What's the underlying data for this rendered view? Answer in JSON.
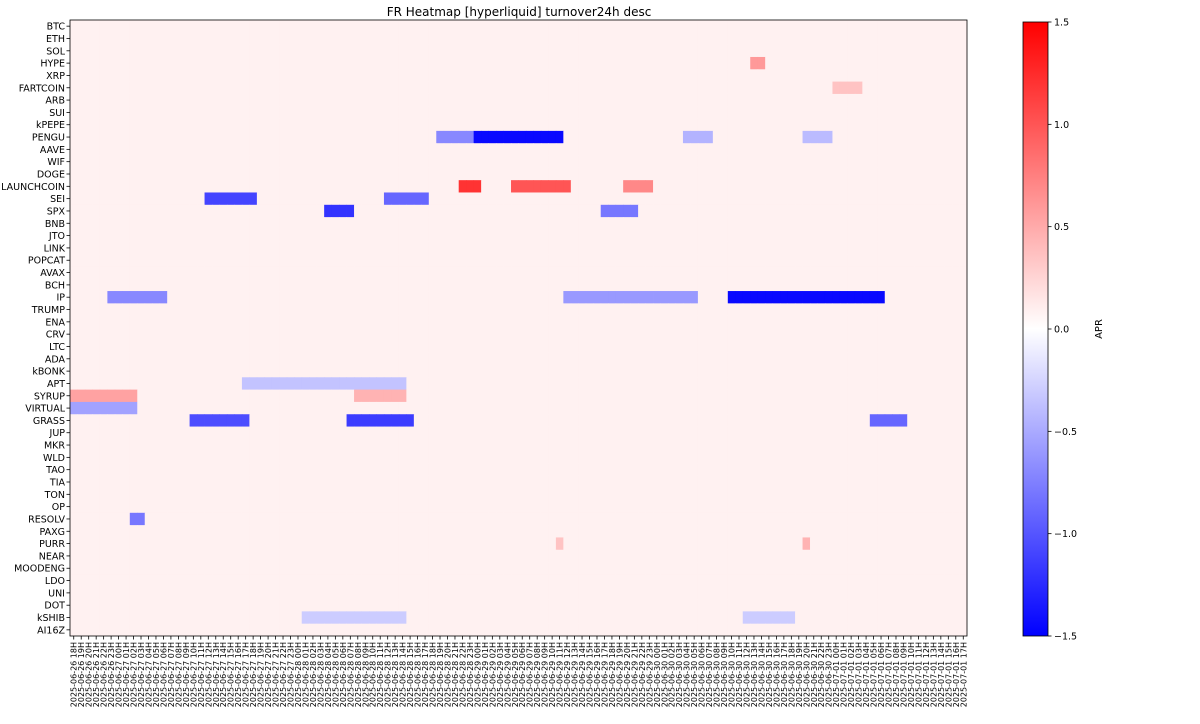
{
  "chart_data": {
    "type": "heatmap",
    "title": "FR Heatmap [hyperliquid] turnover24h desc",
    "colorbar": {
      "label": "APR",
      "min": -1.5,
      "max": 1.5,
      "ticks": [
        "1.5",
        "1.0",
        "0.5",
        "0.0",
        "−0.5",
        "−1.0",
        "−1.5"
      ],
      "colormap": "bwr",
      "colors": {
        "low": "#0000ff",
        "mid": "#ffffff",
        "high": "#ff0000"
      }
    },
    "y_labels": [
      "BTC",
      "ETH",
      "SOL",
      "HYPE",
      "XRP",
      "FARTCOIN",
      "ARB",
      "SUI",
      "kPEPE",
      "PENGU",
      "AAVE",
      "WIF",
      "DOGE",
      "LAUNCHCOIN",
      "SEI",
      "SPX",
      "BNB",
      "JTO",
      "LINK",
      "POPCAT",
      "AVAX",
      "BCH",
      "IP",
      "TRUMP",
      "ENA",
      "CRV",
      "LTC",
      "ADA",
      "kBONK",
      "APT",
      "SYRUP",
      "VIRTUAL",
      "GRASS",
      "JUP",
      "MKR",
      "WLD",
      "TAO",
      "TIA",
      "TON",
      "OP",
      "RESOLV",
      "PAXG",
      "PURR",
      "NEAR",
      "MOODENG",
      "LDO",
      "UNI",
      "DOT",
      "kSHIB",
      "AI16Z"
    ],
    "x_labels": [
      "2025-06-26 18H",
      "2025-06-26 19H",
      "2025-06-26 20H",
      "2025-06-26 21H",
      "2025-06-26 22H",
      "2025-06-26 23H",
      "2025-06-27 00H",
      "2025-06-27 01H",
      "2025-06-27 02H",
      "2025-06-27 03H",
      "2025-06-27 04H",
      "2025-06-27 05H",
      "2025-06-27 06H",
      "2025-06-27 07H",
      "2025-06-27 08H",
      "2025-06-27 09H",
      "2025-06-27 10H",
      "2025-06-27 11H",
      "2025-06-27 12H",
      "2025-06-27 13H",
      "2025-06-27 14H",
      "2025-06-27 15H",
      "2025-06-27 16H",
      "2025-06-27 17H",
      "2025-06-27 18H",
      "2025-06-27 19H",
      "2025-06-27 20H",
      "2025-06-27 21H",
      "2025-06-27 22H",
      "2025-06-27 23H",
      "2025-06-28 00H",
      "2025-06-28 01H",
      "2025-06-28 02H",
      "2025-06-28 03H",
      "2025-06-28 04H",
      "2025-06-28 05H",
      "2025-06-28 06H",
      "2025-06-28 07H",
      "2025-06-28 08H",
      "2025-06-28 09H",
      "2025-06-28 10H",
      "2025-06-28 11H",
      "2025-06-28 12H",
      "2025-06-28 13H",
      "2025-06-28 14H",
      "2025-06-28 15H",
      "2025-06-28 16H",
      "2025-06-28 17H",
      "2025-06-28 18H",
      "2025-06-28 19H",
      "2025-06-28 20H",
      "2025-06-28 21H",
      "2025-06-28 22H",
      "2025-06-28 23H",
      "2025-06-29 00H",
      "2025-06-29 01H",
      "2025-06-29 02H",
      "2025-06-29 03H",
      "2025-06-29 04H",
      "2025-06-29 05H",
      "2025-06-29 06H",
      "2025-06-29 07H",
      "2025-06-29 08H",
      "2025-06-29 09H",
      "2025-06-29 10H",
      "2025-06-29 11H",
      "2025-06-29 12H",
      "2025-06-29 13H",
      "2025-06-29 14H",
      "2025-06-29 15H",
      "2025-06-29 16H",
      "2025-06-29 17H",
      "2025-06-29 18H",
      "2025-06-29 19H",
      "2025-06-29 20H",
      "2025-06-29 21H",
      "2025-06-29 22H",
      "2025-06-29 23H",
      "2025-06-30 00H",
      "2025-06-30 01H",
      "2025-06-30 02H",
      "2025-06-30 03H",
      "2025-06-30 04H",
      "2025-06-30 05H",
      "2025-06-30 06H",
      "2025-06-30 07H",
      "2025-06-30 08H",
      "2025-06-30 09H",
      "2025-06-30 10H",
      "2025-06-30 11H",
      "2025-06-30 12H",
      "2025-06-30 13H",
      "2025-06-30 14H",
      "2025-06-30 15H",
      "2025-06-30 16H",
      "2025-06-30 17H",
      "2025-06-30 18H",
      "2025-06-30 19H",
      "2025-06-30 20H",
      "2025-06-30 21H",
      "2025-06-30 22H",
      "2025-06-30 23H",
      "2025-07-01 00H",
      "2025-07-01 01H",
      "2025-07-01 02H",
      "2025-07-01 03H",
      "2025-07-01 04H",
      "2025-07-01 05H",
      "2025-07-01 06H",
      "2025-07-01 07H",
      "2025-07-01 08H",
      "2025-07-01 09H",
      "2025-07-01 10H",
      "2025-07-01 11H",
      "2025-07-01 12H",
      "2025-07-01 13H",
      "2025-07-01 14H",
      "2025-07-01 15H",
      "2025-07-01 16H",
      "2025-07-01 17H"
    ],
    "x_tick_every": 1,
    "baseline_value": 0.08,
    "features": [
      {
        "row": "PENGU",
        "from": "2025-06-29 00H",
        "to": "2025-06-29 11H",
        "value": -1.45
      },
      {
        "row": "PENGU",
        "from": "2025-06-28 19H",
        "to": "2025-06-28 23H",
        "value": -0.7
      },
      {
        "row": "PENGU",
        "from": "2025-06-30 04H",
        "to": "2025-06-30 07H",
        "value": -0.45
      },
      {
        "row": "PENGU",
        "from": "2025-06-30 20H",
        "to": "2025-06-30 23H",
        "value": -0.4
      },
      {
        "row": "IP",
        "from": "2025-06-30 10H",
        "to": "2025-07-01 06H",
        "value": -1.45
      },
      {
        "row": "IP",
        "from": "2025-06-29 12H",
        "to": "2025-06-30 05H",
        "value": -0.6
      },
      {
        "row": "IP",
        "from": "2025-06-26 23H",
        "to": "2025-06-27 06H",
        "value": -0.7
      },
      {
        "row": "SEI",
        "from": "2025-06-27 12H",
        "to": "2025-06-27 18H",
        "value": -1.1
      },
      {
        "row": "SEI",
        "from": "2025-06-28 12H",
        "to": "2025-06-28 17H",
        "value": -0.9
      },
      {
        "row": "SPX",
        "from": "2025-06-28 04H",
        "to": "2025-06-28 07H",
        "value": -1.2
      },
      {
        "row": "SPX",
        "from": "2025-06-29 17H",
        "to": "2025-06-29 21H",
        "value": -0.8
      },
      {
        "row": "GRASS",
        "from": "2025-06-27 10H",
        "to": "2025-06-27 17H",
        "value": -1.05
      },
      {
        "row": "GRASS",
        "from": "2025-06-28 07H",
        "to": "2025-06-28 15H",
        "value": -1.15
      },
      {
        "row": "GRASS",
        "from": "2025-07-01 05H",
        "to": "2025-07-01 09H",
        "value": -0.9
      },
      {
        "row": "SYRUP",
        "from": "2025-06-26 18H",
        "to": "2025-06-27 02H",
        "value": 0.55
      },
      {
        "row": "SYRUP",
        "from": "2025-06-28 08H",
        "to": "2025-06-28 14H",
        "value": 0.45
      },
      {
        "row": "LAUNCHCOIN",
        "from": "2025-06-28 22H",
        "to": "2025-06-29 00H",
        "value": 1.2
      },
      {
        "row": "LAUNCHCOIN",
        "from": "2025-06-29 05H",
        "to": "2025-06-29 12H",
        "value": 1.0
      },
      {
        "row": "LAUNCHCOIN",
        "from": "2025-06-29 20H",
        "to": "2025-06-29 23H",
        "value": 0.7
      },
      {
        "row": "APT",
        "from": "2025-06-27 17H",
        "to": "2025-06-28 14H",
        "value": -0.35
      },
      {
        "row": "VIRTUAL",
        "from": "2025-06-26 18H",
        "to": "2025-06-27 02H",
        "value": -0.55
      },
      {
        "row": "HYPE",
        "from": "2025-06-30 13H",
        "to": "2025-06-30 14H",
        "value": 0.6
      },
      {
        "row": "RESOLV",
        "from": "2025-06-27 02H",
        "to": "2025-06-27 03H",
        "value": -0.8
      },
      {
        "row": "PURR",
        "from": "2025-06-30 20H",
        "to": "2025-06-30 20H",
        "value": 0.45
      },
      {
        "row": "PURR",
        "from": "2025-06-29 11H",
        "to": "2025-06-29 11H",
        "value": 0.35
      },
      {
        "row": "FARTCOIN",
        "from": "2025-07-01 00H",
        "to": "2025-07-01 03H",
        "value": 0.35
      },
      {
        "row": "kSHIB",
        "from": "2025-06-28 01H",
        "to": "2025-06-28 14H",
        "value": -0.3
      },
      {
        "row": "kSHIB",
        "from": "2025-06-30 12H",
        "to": "2025-06-30 18H",
        "value": -0.3
      }
    ]
  }
}
